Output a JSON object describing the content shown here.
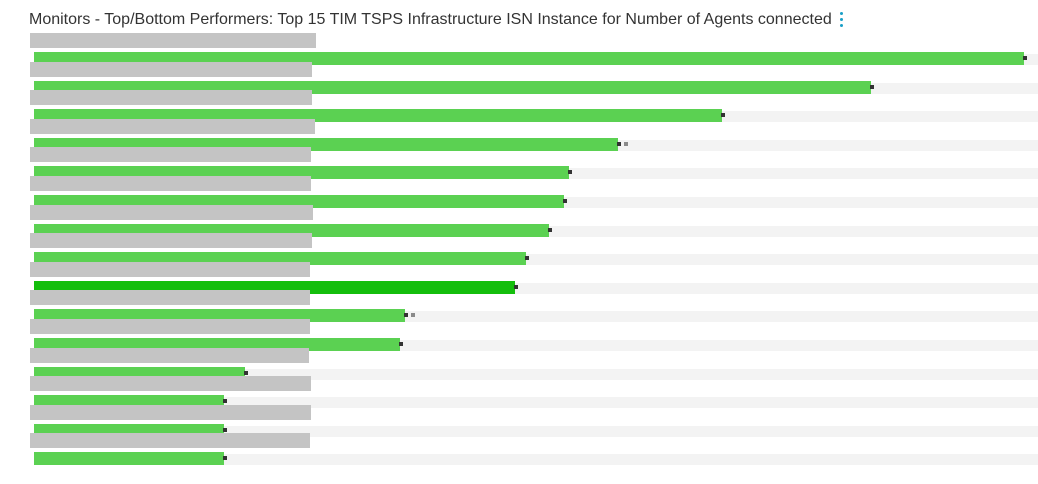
{
  "header": {
    "title": "Monitors - Top/Bottom Performers: Top 15 TIM TSPS Infrastructure ISN Instance for Number of Agents connected"
  },
  "icons": {
    "menu": "more-vertical-icon"
  },
  "colors": {
    "bar": "#5bd152",
    "bar_highlight": "#14be0c",
    "label_placeholder": "#c4c4c4",
    "track": "#f3f3f3",
    "marker": "#333333",
    "menu_icon": "#1a9fc7"
  },
  "chart_data": {
    "type": "bar",
    "orientation": "horizontal",
    "categories": [
      "",
      "",
      "",
      "",
      "",
      "",
      "",
      "",
      "",
      "",
      "",
      "",
      "",
      "",
      ""
    ],
    "values": [
      1.0,
      0.845,
      0.695,
      0.59,
      0.54,
      0.535,
      0.52,
      0.497,
      0.486,
      0.375,
      0.37,
      0.213,
      0.192,
      0.192,
      0.192
    ],
    "highlighted_index": 8,
    "xlim": [
      0,
      1
    ],
    "grid": false,
    "legend": "none"
  }
}
